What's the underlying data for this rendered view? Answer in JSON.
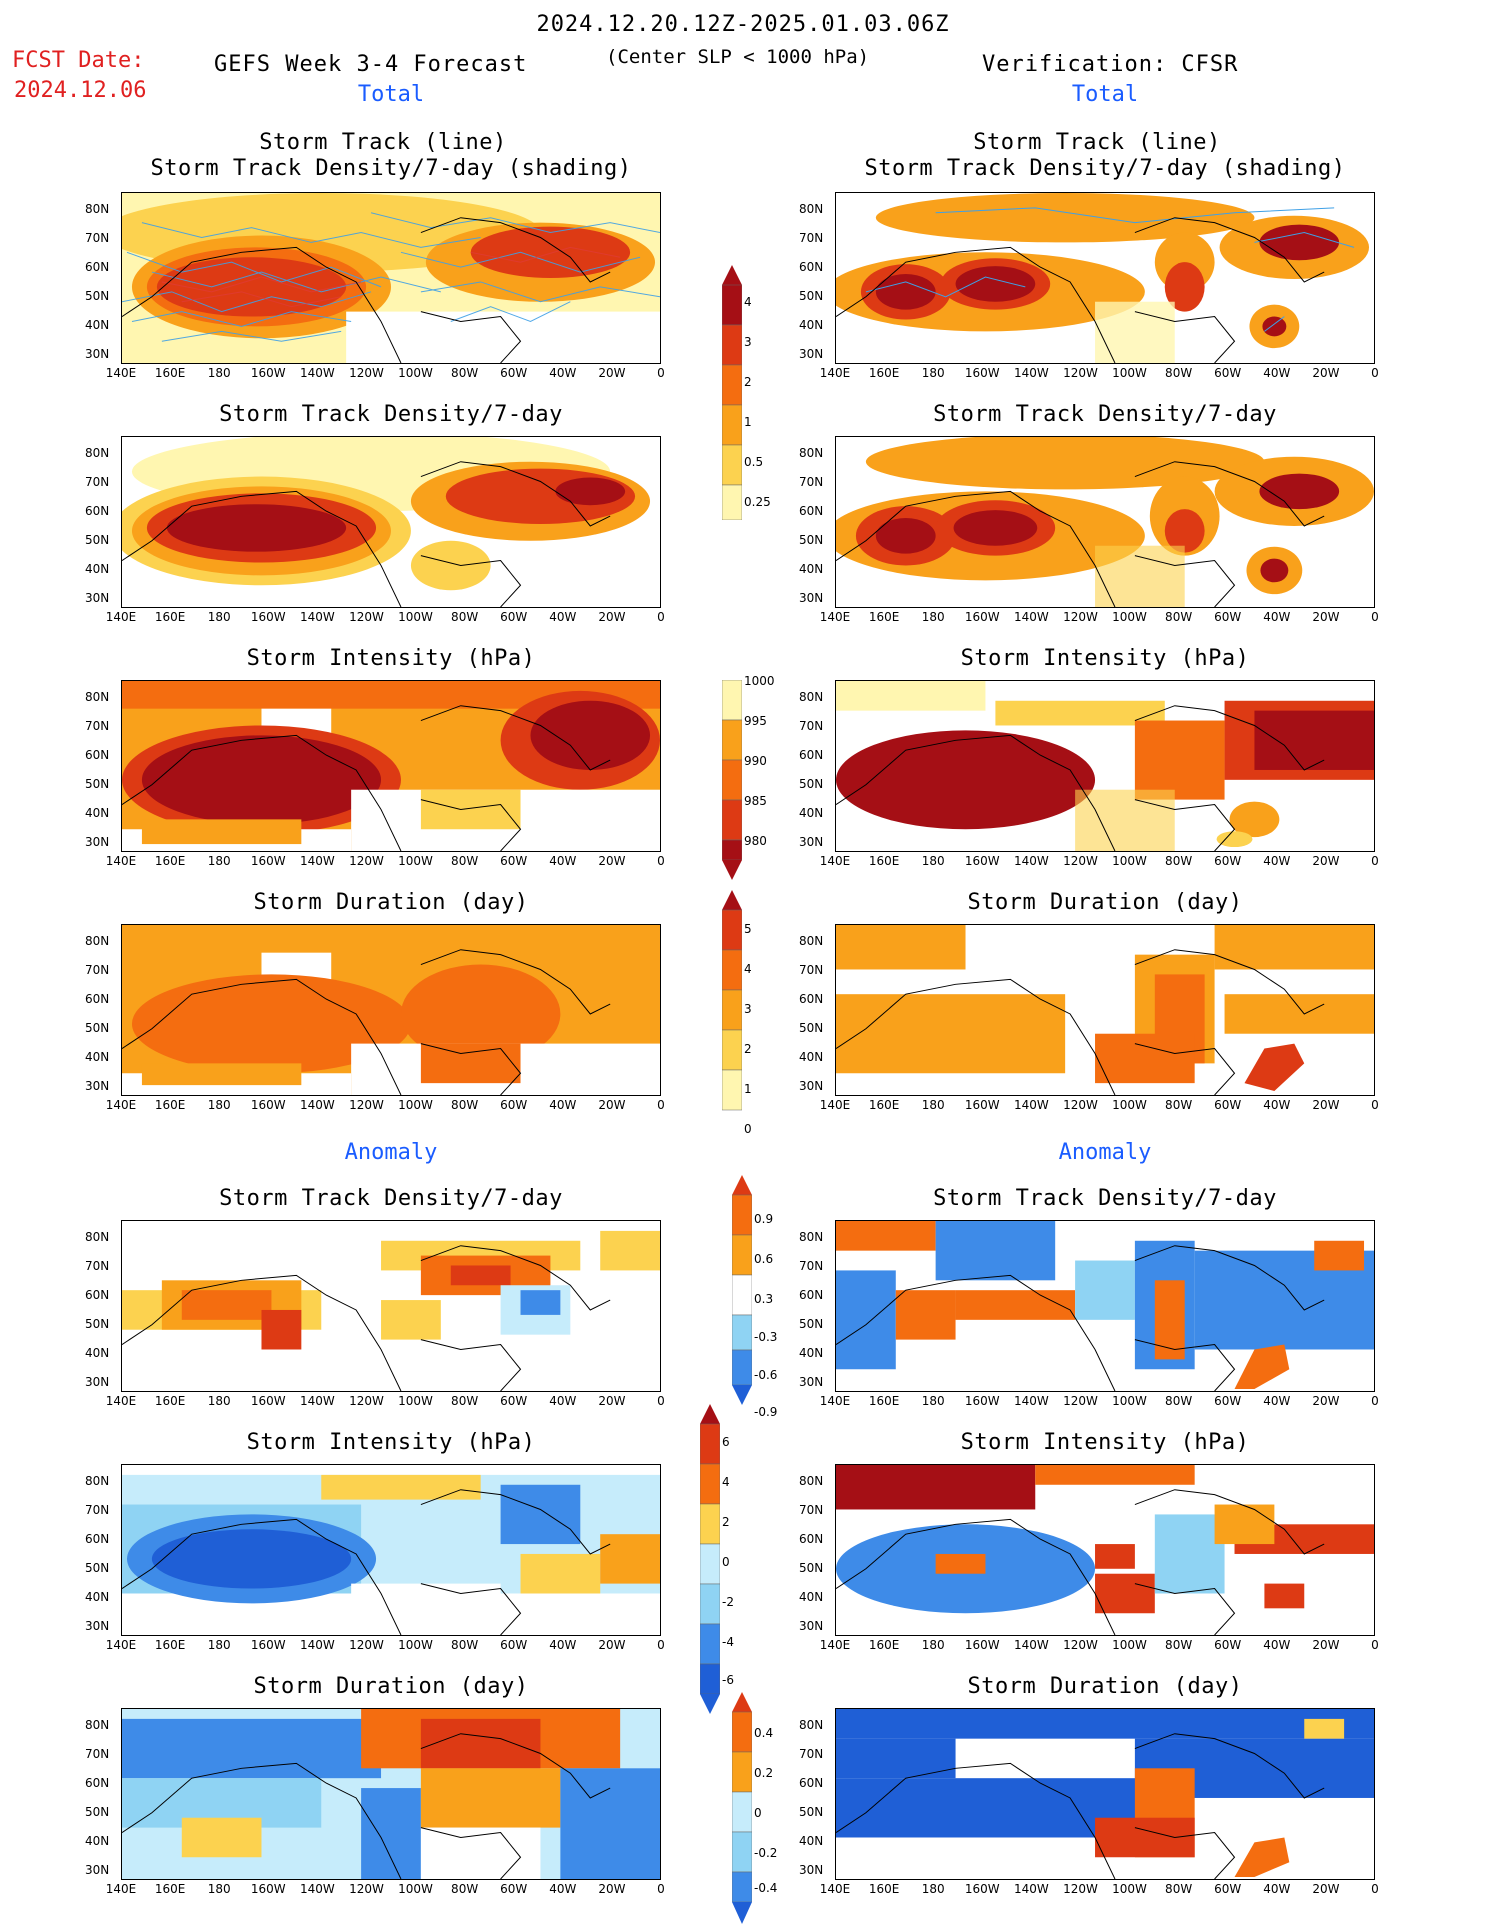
{
  "header": {
    "date_range": "2024.12.20.12Z-2025.01.03.06Z",
    "fcst_label": "FCST Date:",
    "fcst_date": "2024.12.06",
    "left_title": "GEFS Week 3-4 Forecast",
    "criterion": "(Center SLP < 1000 hPa)",
    "right_title": "Verification: CFSR"
  },
  "sections": {
    "total": "Total",
    "anomaly": "Anomaly"
  },
  "panel_titles": {
    "track_line": "Storm Track (line)",
    "track_density_shading": "Storm Track Density/7-day (shading)",
    "track_density": "Storm Track Density/7-day",
    "intensity": "Storm Intensity (hPa)",
    "duration": "Storm Duration (day)"
  },
  "axes": {
    "lat_labels": [
      "80N",
      "70N",
      "60N",
      "50N",
      "40N",
      "30N"
    ],
    "lon_labels": [
      "140E",
      "160E",
      "180",
      "160W",
      "140W",
      "120W",
      "100W",
      "80W",
      "60W",
      "40W",
      "20W",
      "0"
    ]
  },
  "colorbars": {
    "density_total": [
      "4",
      "3",
      "2",
      "1",
      "0.5",
      "0.25"
    ],
    "intensity_total": [
      "1000",
      "995",
      "990",
      "985",
      "980"
    ],
    "duration_total": [
      "5",
      "4",
      "3",
      "2",
      "1",
      "0"
    ],
    "density_anom": [
      "0.9",
      "0.6",
      "0.3",
      "-0.3",
      "-0.6",
      "-0.9"
    ],
    "intensity_anom": [
      "6",
      "4",
      "2",
      "0",
      "-2",
      "-4",
      "-6"
    ],
    "duration_anom": [
      "0.4",
      "0.2",
      "0",
      "-0.2",
      "-0.4"
    ]
  },
  "colors": {
    "dark_red": "#a50f15",
    "red": "#dd3a14",
    "orange": "#f46d10",
    "light_orange": "#f9a11b",
    "yellow": "#fcd24f",
    "pale_yellow": "#fff6b0",
    "pale_blue": "#c6ecfb",
    "light_blue": "#8fd3f3",
    "blue": "#3e8be8",
    "dark_blue": "#1f5fd6",
    "track_blue": "#3fa0e6",
    "track_red": "#e03a3a",
    "header_red": "#e02020",
    "section_blue": "#1a5cff"
  }
}
